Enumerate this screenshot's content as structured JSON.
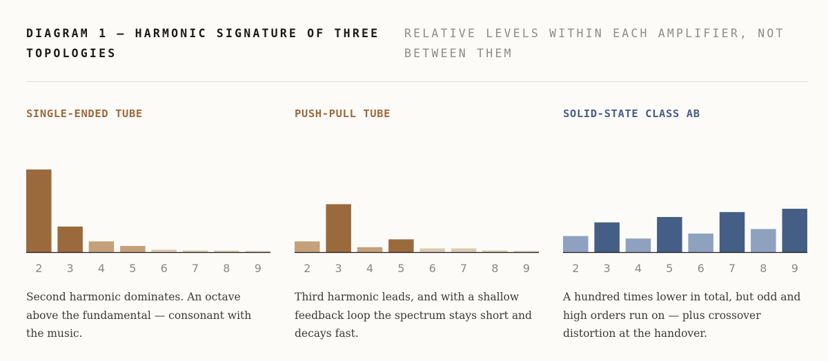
{
  "header": {
    "title": "DIAGRAM 1 — HARMONIC SIGNATURE OF THREE TOPOLOGIES",
    "subtitle": "RELATIVE LEVELS WITHIN EACH AMPLIFIER, NOT BETWEEN THEM"
  },
  "chart_data": [
    {
      "type": "bar",
      "title": "SINGLE-ENDED TUBE",
      "title_color": "#9b6a3c",
      "categories": [
        "2",
        "3",
        "4",
        "5",
        "6",
        "7",
        "8",
        "9"
      ],
      "values": [
        100,
        31,
        13,
        7.5,
        3,
        2,
        1.8,
        1.5
      ],
      "ylim": [
        0,
        100
      ],
      "bar_colors": [
        "#9b6a3c",
        "#9b6a3c",
        "#c4a07b",
        "#c4a07b",
        "#d9c9b0",
        "#d9c9b0",
        "#d9c9b0",
        "#d9c9b0"
      ],
      "caption": "Second harmonic dominates. An octave above the fundamental — consonant with the music."
    },
    {
      "type": "bar",
      "title": "PUSH-PULL TUBE",
      "title_color": "#9b6a3c",
      "categories": [
        "2",
        "3",
        "4",
        "5",
        "6",
        "7",
        "8",
        "9"
      ],
      "values": [
        13,
        58,
        6,
        15.5,
        4.5,
        4.5,
        2,
        1.5
      ],
      "ylim": [
        0,
        100
      ],
      "bar_colors": [
        "#c4a07b",
        "#9b6a3c",
        "#c4a07b",
        "#9b6a3c",
        "#d9c9b0",
        "#d9c9b0",
        "#d9c9b0",
        "#d9c9b0"
      ],
      "caption": "Third harmonic leads, and with a shallow feedback loop the spectrum stays short and decays fast."
    },
    {
      "type": "bar",
      "title": "SOLID-STATE CLASS AB",
      "title_color": "#455e86",
      "categories": [
        "2",
        "3",
        "4",
        "5",
        "6",
        "7",
        "8",
        "9"
      ],
      "values": [
        19.5,
        36,
        16.5,
        42.5,
        22.5,
        48.5,
        28,
        52.5
      ],
      "ylim": [
        0,
        100
      ],
      "bar_colors": [
        "#8ea2c0",
        "#455e86",
        "#8ea2c0",
        "#455e86",
        "#8ea2c0",
        "#455e86",
        "#8ea2c0",
        "#455e86"
      ],
      "caption": "A hundred times lower in total, but odd and high orders run on — plus crossover distortion at the handover."
    }
  ]
}
